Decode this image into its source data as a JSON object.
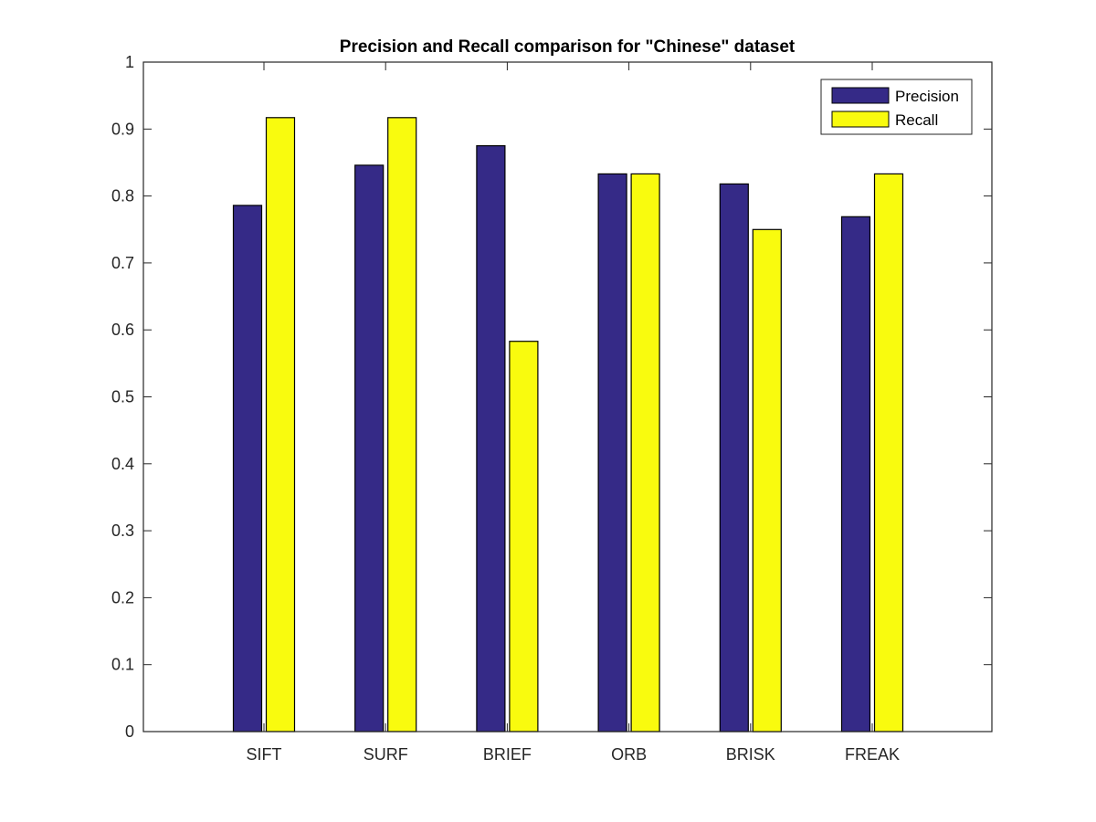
{
  "chart_data": {
    "type": "bar",
    "title": "Precision and Recall comparison for \"Chinese\" dataset",
    "xlabel": "",
    "ylabel": "",
    "categories": [
      "SIFT",
      "SURF",
      "BRIEF",
      "ORB",
      "BRISK",
      "FREAK"
    ],
    "series": [
      {
        "name": "Precision",
        "color": "#352a87",
        "values": [
          0.786,
          0.846,
          0.875,
          0.833,
          0.818,
          0.769
        ]
      },
      {
        "name": "Recall",
        "color": "#f9fb0e",
        "values": [
          0.917,
          0.917,
          0.583,
          0.833,
          0.75,
          0.833
        ]
      }
    ],
    "ylim": [
      0,
      1
    ],
    "yticks": [
      "0",
      "0.1",
      "0.2",
      "0.3",
      "0.4",
      "0.5",
      "0.6",
      "0.7",
      "0.8",
      "0.9",
      "1"
    ],
    "grid": false,
    "legend_position": "top-right"
  }
}
